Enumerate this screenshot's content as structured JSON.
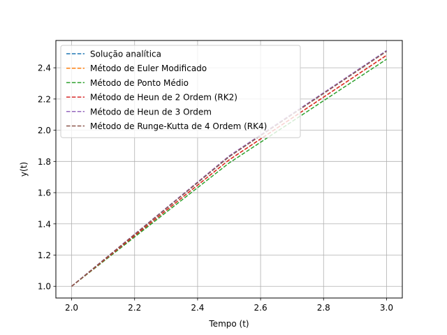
{
  "chart_data": {
    "type": "line",
    "title": "",
    "xlabel": "Tempo (t)",
    "ylabel": "y(t)",
    "xlim": [
      1.95,
      3.05
    ],
    "ylim": [
      0.925,
      2.575
    ],
    "xticks": [
      "2.0",
      "2.2",
      "2.4",
      "2.6",
      "2.8",
      "3.0"
    ],
    "yticks": [
      "1.0",
      "1.2",
      "1.4",
      "1.6",
      "1.8",
      "2.0",
      "2.2",
      "2.4"
    ],
    "grid": true,
    "legend_position": "top-left",
    "line_style": "dashed",
    "x": [
      2.0,
      2.5,
      3.0
    ],
    "series": [
      {
        "name": "Solução analítica",
        "color": "#1f77b4",
        "values": [
          1.0,
          1.83,
          2.51
        ]
      },
      {
        "name": "Método de Euler Modificado",
        "color": "#ff7f0e",
        "values": [
          1.0,
          1.81,
          2.48
        ]
      },
      {
        "name": "Método de Ponto Médio",
        "color": "#2ca02c",
        "values": [
          1.0,
          1.79,
          2.455
        ]
      },
      {
        "name": "Método de Heun de 2 Ordem (RK2)",
        "color": "#d62728",
        "values": [
          1.0,
          1.81,
          2.48
        ]
      },
      {
        "name": "Método de Heun de 3 Ordem",
        "color": "#9467bd",
        "values": [
          1.0,
          1.835,
          2.51
        ]
      },
      {
        "name": "Método de Runge-Kutta de 4 Ordem (RK4)",
        "color": "#8c564b",
        "values": [
          1.0,
          1.83,
          2.505
        ]
      }
    ]
  }
}
